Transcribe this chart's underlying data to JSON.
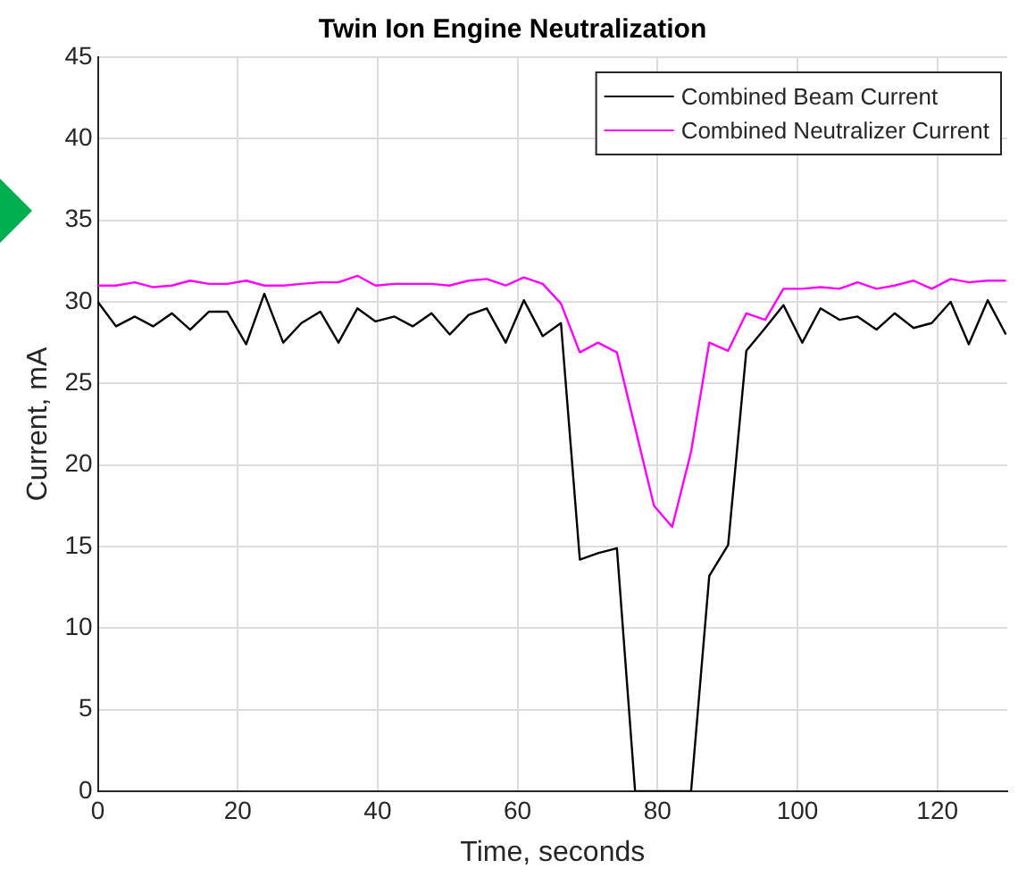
{
  "chart_data": {
    "type": "line",
    "title": "Twin Ion Engine Neutralization",
    "xlabel": "Time, seconds",
    "ylabel": "Current, mA",
    "x": [
      0,
      2.6,
      5.3,
      7.9,
      10.6,
      13.2,
      15.9,
      18.5,
      21.2,
      23.8,
      26.5,
      29.1,
      31.8,
      34.4,
      37.1,
      39.7,
      42.4,
      45.0,
      47.7,
      50.3,
      53.0,
      55.6,
      58.3,
      60.9,
      63.6,
      66.2,
      68.9,
      71.5,
      74.2,
      76.8,
      79.5,
      82.1,
      84.8,
      87.4,
      90.1,
      92.7,
      95.4,
      98.0,
      100.7,
      103.3,
      106.0,
      108.6,
      111.3,
      113.9,
      116.6,
      119.2,
      121.9,
      124.5,
      127.2,
      129.8
    ],
    "series": [
      {
        "name": "Combined Beam Current",
        "color": "#000000",
        "values": [
          30.0,
          28.5,
          29.1,
          28.5,
          29.3,
          28.3,
          29.4,
          29.4,
          27.4,
          30.5,
          27.5,
          28.7,
          29.4,
          27.5,
          29.6,
          28.8,
          29.1,
          28.5,
          29.3,
          28.0,
          29.2,
          29.6,
          27.5,
          30.1,
          27.9,
          28.7,
          14.2,
          14.6,
          14.9,
          0,
          0,
          0,
          0,
          13.2,
          15.1,
          27.0,
          28.4,
          29.8,
          27.5,
          29.6,
          28.9,
          29.1,
          28.3,
          29.3,
          28.4,
          28.7,
          30.0,
          27.4,
          30.1,
          28.0
        ]
      },
      {
        "name": "Combined Neutralizer Current",
        "color": "#ff00ff",
        "values": [
          31.0,
          31.0,
          31.2,
          30.9,
          31.0,
          31.3,
          31.1,
          31.1,
          31.3,
          31.0,
          31.0,
          31.1,
          31.2,
          31.2,
          31.6,
          31.0,
          31.1,
          31.1,
          31.1,
          31.0,
          31.3,
          31.4,
          31.0,
          31.5,
          31.1,
          29.9,
          26.9,
          27.5,
          26.9,
          22.3,
          17.5,
          16.2,
          20.8,
          27.5,
          27.0,
          29.3,
          28.9,
          30.8,
          30.8,
          30.9,
          30.8,
          31.2,
          30.8,
          31.0,
          31.3,
          30.8,
          31.4,
          31.2,
          31.3,
          31.3
        ]
      }
    ],
    "xlim": [
      0,
      130
    ],
    "xticks": [
      0,
      20,
      40,
      60,
      80,
      100,
      120
    ],
    "ylim": [
      0,
      45
    ],
    "yticks": [
      0,
      5,
      10,
      15,
      20,
      25,
      30,
      35,
      40,
      45
    ],
    "grid": true,
    "legend": "top right",
    "marker": "none",
    "line_style": "solid"
  }
}
